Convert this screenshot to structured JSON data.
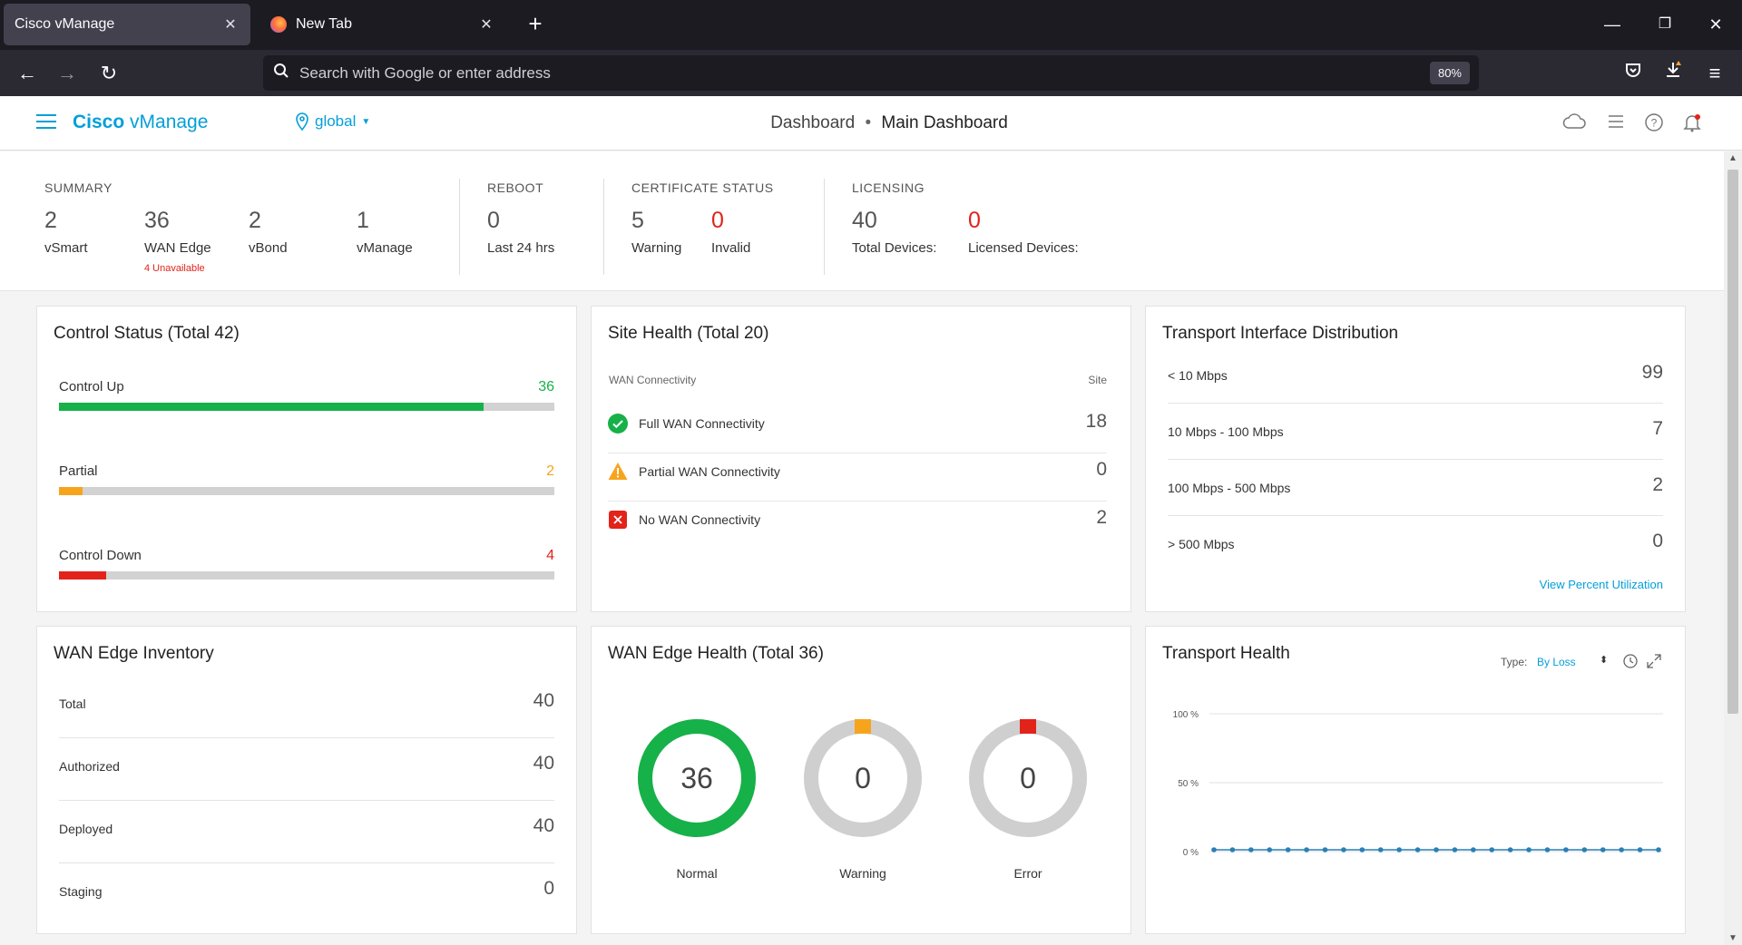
{
  "browser": {
    "tabs": [
      {
        "title": "Cisco vManage",
        "active": true
      },
      {
        "title": "New Tab",
        "active": false
      }
    ],
    "address_placeholder": "Search with Google or enter address",
    "zoom": "80%"
  },
  "header": {
    "brand_bold": "Cisco",
    "brand_rest": " vManage",
    "scope": "global",
    "breadcrumb_parent": "Dashboard",
    "breadcrumb_sep": "•",
    "breadcrumb_current": "Main Dashboard"
  },
  "summary": {
    "summary_title": "SUMMARY",
    "vsmart": {
      "value": "2",
      "label": "vSmart"
    },
    "wan_edge": {
      "value": "36",
      "label": "WAN Edge",
      "note": "4 Unavailable"
    },
    "vbond": {
      "value": "2",
      "label": "vBond"
    },
    "vmanage": {
      "value": "1",
      "label": "vManage"
    },
    "reboot_title": "REBOOT",
    "reboot": {
      "value": "0",
      "label": "Last 24 hrs"
    },
    "cert_title": "CERTIFICATE STATUS",
    "cert_warning": {
      "value": "5",
      "label": "Warning"
    },
    "cert_invalid": {
      "value": "0",
      "label": "Invalid"
    },
    "licensing_title": "LICENSING",
    "total_devices": {
      "value": "40",
      "label": "Total Devices:"
    },
    "licensed_devices": {
      "value": "0",
      "label": "Licensed Devices:"
    }
  },
  "control_status": {
    "title": "Control Status (Total 42)",
    "rows": [
      {
        "label": "Control Up",
        "value": "36",
        "fraction": 0.857,
        "color": "#16b149"
      },
      {
        "label": "Partial",
        "value": "2",
        "fraction": 0.048,
        "color": "#f7a41d"
      },
      {
        "label": "Control Down",
        "value": "4",
        "fraction": 0.095,
        "color": "#e2231a"
      }
    ]
  },
  "site_health": {
    "title": "Site Health (Total 20)",
    "col_left": "WAN Connectivity",
    "col_right": "Site",
    "rows": [
      {
        "label": "Full WAN Connectivity",
        "value": "18",
        "icon": "check-circle-icon"
      },
      {
        "label": "Partial WAN Connectivity",
        "value": "0",
        "icon": "warning-triangle-icon"
      },
      {
        "label": "No WAN Connectivity",
        "value": "2",
        "icon": "error-x-icon"
      }
    ]
  },
  "transport_dist": {
    "title": "Transport Interface Distribution",
    "rows": [
      {
        "label": "< 10 Mbps",
        "value": "99"
      },
      {
        "label": "10 Mbps - 100 Mbps",
        "value": "7"
      },
      {
        "label": "100 Mbps - 500 Mbps",
        "value": "2"
      },
      {
        "label": "> 500 Mbps",
        "value": "0"
      }
    ],
    "link": "View Percent Utilization"
  },
  "inventory": {
    "title": "WAN Edge Inventory",
    "rows": [
      {
        "label": "Total",
        "value": "40"
      },
      {
        "label": "Authorized",
        "value": "40"
      },
      {
        "label": "Deployed",
        "value": "40"
      },
      {
        "label": "Staging",
        "value": "0"
      }
    ]
  },
  "edge_health": {
    "title": "WAN Edge Health (Total 36)",
    "donuts": [
      {
        "value": "36",
        "label": "Normal",
        "fraction": 1.0,
        "color": "#16b149"
      },
      {
        "value": "0",
        "label": "Warning",
        "fraction": 0,
        "color": "#f7a41d"
      },
      {
        "value": "0",
        "label": "Error",
        "fraction": 0,
        "color": "#e2231a"
      }
    ]
  },
  "transport_health": {
    "title": "Transport Health",
    "type_label": "Type:",
    "type_value": "By Loss",
    "chart_data": {
      "type": "line",
      "ylabels": [
        "100 %",
        "50 %",
        "0 %"
      ],
      "ylim": [
        0,
        100
      ],
      "series": [
        {
          "values": [
            0,
            0,
            0,
            0,
            0,
            0,
            0,
            0,
            0,
            0,
            0,
            0,
            0,
            0,
            0,
            0,
            0,
            0,
            0,
            0,
            0,
            0,
            0,
            0,
            0
          ]
        }
      ],
      "grid": true
    }
  }
}
